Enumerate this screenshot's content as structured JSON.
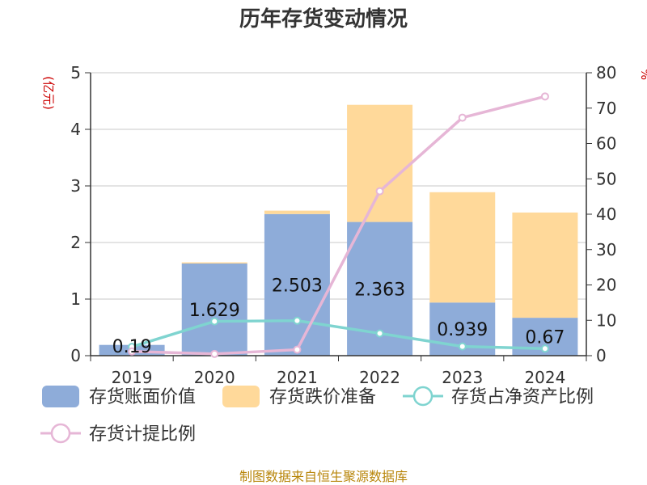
{
  "title": "历年存货变动情况",
  "source_note": "制图数据来自恒生聚源数据库",
  "chart_data": {
    "type": "bar",
    "title": "历年存货变动情况",
    "categories": [
      "2019",
      "2020",
      "2021",
      "2022",
      "2023",
      "2024"
    ],
    "left_axis": {
      "unit_label": "(亿元)",
      "ylim": [
        0,
        5
      ],
      "ticks": [
        "0",
        "1",
        "2",
        "3",
        "4",
        "5"
      ]
    },
    "right_axis": {
      "unit_label": "%",
      "ylim": [
        0,
        80
      ],
      "ticks": [
        "0",
        "10",
        "20",
        "30",
        "40",
        "50",
        "60",
        "70",
        "80"
      ]
    },
    "grid": true,
    "legend_position": "bottom",
    "series": [
      {
        "name": "存货账面价值",
        "kind": "bar",
        "stack": "inventory",
        "axis": "left",
        "color": "#8eacd9",
        "values": [
          0.19,
          1.629,
          2.503,
          2.363,
          0.939,
          0.67
        ],
        "labels": [
          "0.19",
          "1.629",
          "2.503",
          "2.363",
          "0.939",
          "0.67"
        ]
      },
      {
        "name": "存货跌价准备",
        "kind": "bar",
        "stack": "inventory",
        "axis": "left",
        "color": "#ffd99a",
        "values": [
          0,
          0.02,
          0.06,
          2.07,
          1.95,
          1.86
        ]
      },
      {
        "name": "存货占净资产比例",
        "kind": "line",
        "axis": "right",
        "color": "#7fd4d0",
        "values": [
          2.5,
          9.7,
          9.9,
          6.3,
          2.6,
          2.0
        ]
      },
      {
        "name": "存货计提比例",
        "kind": "line",
        "axis": "right",
        "color": "#e6b6d6",
        "values": [
          1.2,
          0.5,
          1.7,
          46.5,
          67.3,
          73.3
        ]
      }
    ]
  }
}
